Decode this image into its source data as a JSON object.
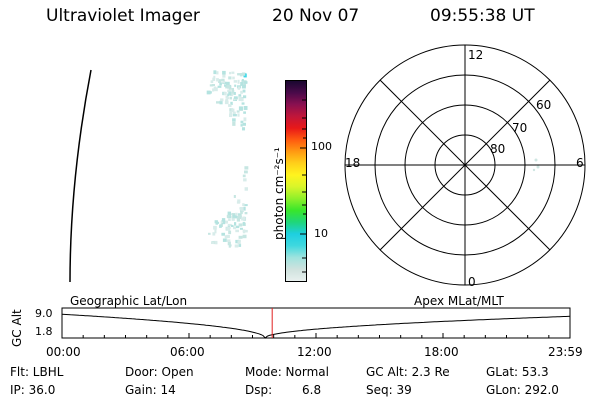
{
  "header": {
    "title": "Ultraviolet Imager",
    "date": "20 Nov 07",
    "time": "09:55:38 UT"
  },
  "colorbar": {
    "unit_label": "photon cm⁻²s⁻¹",
    "ticks": [
      "100",
      "10"
    ],
    "colors": [
      "#e8f0ee",
      "#cfe2de",
      "#9fe3de",
      "#3fd8df",
      "#1ecfe0",
      "#1fd67a",
      "#38e62b",
      "#8ef02a",
      "#d8f52a",
      "#fff41e",
      "#ffd01a",
      "#ff9a12",
      "#ff5a10",
      "#e81818",
      "#c0163a",
      "#8a1050",
      "#4a0a4a",
      "#1a0830"
    ]
  },
  "polar_plot": {
    "mlt_labels": [
      "12",
      "18",
      "6",
      "0"
    ],
    "lat_labels": [
      "60",
      "70",
      "80"
    ]
  },
  "timeline": {
    "left_label": "Geographic Lat/Lon",
    "right_label": "Apex  MLat/MLT",
    "y_axis_label": "GC Alt",
    "y_ticks": [
      "9.0",
      "1.8"
    ],
    "x_ticks": [
      "00:00",
      "06:00",
      "12:00",
      "18:00",
      "23:59"
    ],
    "altitude_curve": {
      "times_hours": [
        0,
        9.6,
        23.98
      ],
      "alt_re": [
        7.5,
        1.8,
        7.0
      ]
    },
    "current_time_hours": 9.93,
    "marker_color": "#e02020"
  },
  "info": {
    "flt": "Flt: LBHL",
    "ip": "IP: 36.0",
    "door": "Door: Open",
    "gain": "Gain: 14",
    "mode": "Mode: Normal",
    "dsp_label": "Dsp:",
    "dsp_value": "6.8",
    "gc_alt": "GC Alt: 2.3 Re",
    "seq": "Seq: 39",
    "glat": "GLat:  53.3",
    "glon": "GLon: 292.0"
  }
}
